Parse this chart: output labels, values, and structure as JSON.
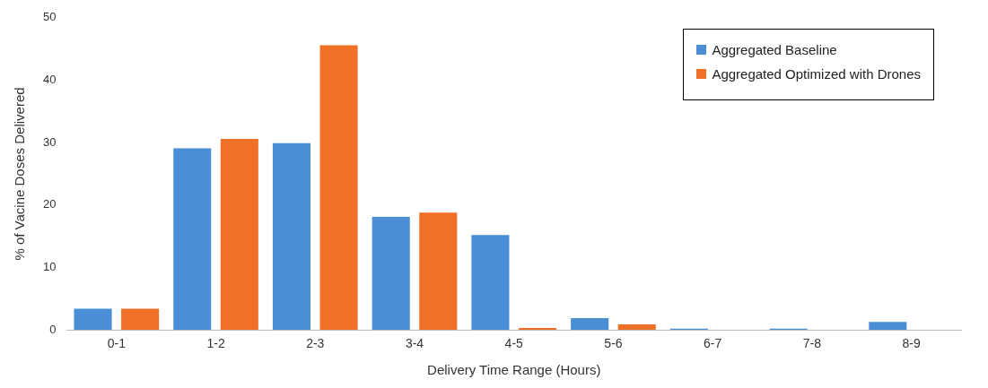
{
  "chart_data": {
    "type": "bar",
    "xlabel": "Delivery Time Range (Hours)",
    "ylabel": "% of Vacine Doses Delivered",
    "categories": [
      "0-1",
      "1-2",
      "2-3",
      "3-4",
      "4-5",
      "5-6",
      "6-7",
      "7-8",
      "8-9"
    ],
    "series": [
      {
        "name": "Aggregated Baseline",
        "color": "#4a8fd6",
        "values": [
          3.4,
          29.1,
          29.9,
          18.1,
          15.2,
          1.9,
          0.2,
          0.2,
          1.3
        ]
      },
      {
        "name": "Aggregated Optimized with Drones",
        "color": "#f07028",
        "values": [
          3.4,
          30.6,
          45.6,
          18.8,
          0.3,
          0.9,
          0,
          0,
          0
        ]
      }
    ],
    "ylim": [
      0,
      50
    ],
    "yticks": [
      0,
      10,
      20,
      30,
      40,
      50
    ],
    "grid": false,
    "legend": "top right"
  }
}
